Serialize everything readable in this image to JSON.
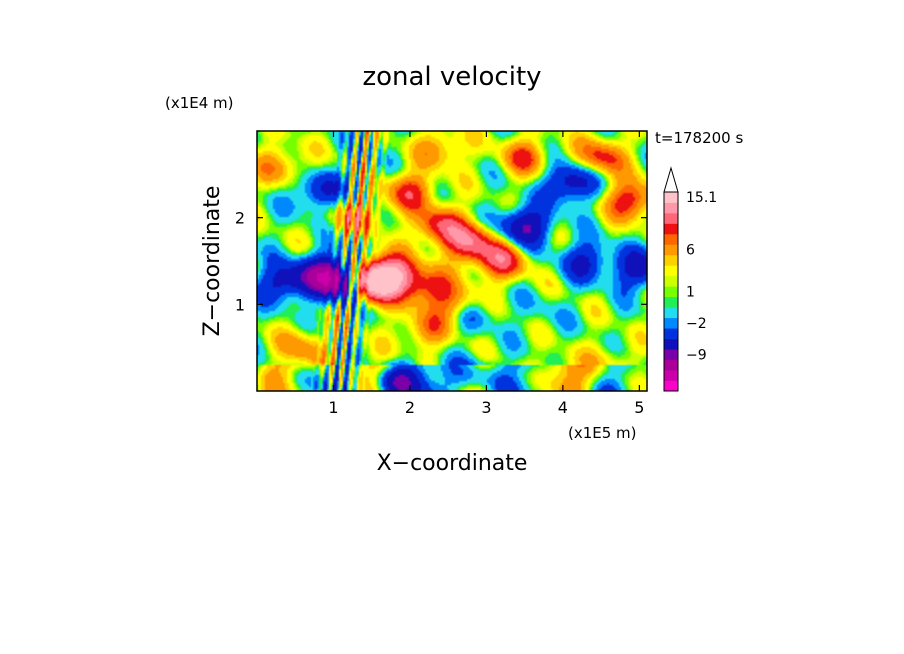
{
  "chart_data": {
    "type": "heatmap",
    "title": "zonal velocity",
    "xlabel": "X−coordinate",
    "ylabel": "Z−coordinate",
    "x_unit": "(x1E5 m)",
    "y_unit": "(x1E4 m)",
    "time_label": "t=178200 s",
    "xlim": [
      0,
      5.1
    ],
    "ylim": [
      0,
      3.0
    ],
    "x_ticks": [
      {
        "value": 1,
        "label": "1"
      },
      {
        "value": 2,
        "label": "2"
      },
      {
        "value": 3,
        "label": "3"
      },
      {
        "value": 4,
        "label": "4"
      },
      {
        "value": 5,
        "label": "5"
      }
    ],
    "y_ticks": [
      {
        "value": 1,
        "label": "1"
      },
      {
        "value": 2,
        "label": "2"
      }
    ],
    "colorbar": {
      "colors": [
        "#ff00cc",
        "#cc00aa",
        "#aa0099",
        "#7a00aa",
        "#1111bb",
        "#0033dd",
        "#0088ff",
        "#22ddee",
        "#22ee55",
        "#77ff00",
        "#ccff00",
        "#ffff00",
        "#ffd000",
        "#ff9900",
        "#ff6600",
        "#ee1111",
        "#ff6677",
        "#ff99aa",
        "#ffc2c8"
      ],
      "extend_color": "#ffffff",
      "tick_labels": [
        {
          "index": 3,
          "label": "−9"
        },
        {
          "index": 6,
          "label": "−2"
        },
        {
          "index": 9,
          "label": "1"
        },
        {
          "index": 13,
          "label": "6"
        },
        {
          "index": 18,
          "label": "15.1"
        }
      ]
    },
    "field_features": [
      {
        "x": 0.3,
        "z": 2.6,
        "amp": 4
      },
      {
        "x": 0.8,
        "z": 2.3,
        "amp": -5
      },
      {
        "x": 0.85,
        "z": 1.35,
        "amp": -8
      },
      {
        "x": 0.35,
        "z": 1.25,
        "amp": -6
      },
      {
        "x": 1.15,
        "z": 1.25,
        "amp": -10
      },
      {
        "x": 1.5,
        "z": 1.25,
        "amp": 14
      },
      {
        "x": 1.75,
        "z": 1.35,
        "amp": 10
      },
      {
        "x": 1.3,
        "z": 2.0,
        "amp": 5
      },
      {
        "x": 2.0,
        "z": 2.3,
        "amp": 6
      },
      {
        "x": 2.4,
        "z": 1.9,
        "amp": 7
      },
      {
        "x": 2.8,
        "z": 1.7,
        "amp": 8
      },
      {
        "x": 3.2,
        "z": 1.5,
        "amp": 7
      },
      {
        "x": 2.2,
        "z": 1.2,
        "amp": 6
      },
      {
        "x": 2.6,
        "z": 1.0,
        "amp": 5
      },
      {
        "x": 2.2,
        "z": 0.7,
        "amp": 4
      },
      {
        "x": 2.8,
        "z": 0.9,
        "amp": -3
      },
      {
        "x": 3.5,
        "z": 1.9,
        "amp": -8
      },
      {
        "x": 4.1,
        "z": 2.4,
        "amp": -7
      },
      {
        "x": 4.3,
        "z": 1.5,
        "amp": -5
      },
      {
        "x": 4.5,
        "z": 2.7,
        "amp": 6
      },
      {
        "x": 4.9,
        "z": 2.2,
        "amp": 7
      },
      {
        "x": 5.0,
        "z": 1.4,
        "amp": -6
      },
      {
        "x": 2.4,
        "z": 2.8,
        "amp": 4
      },
      {
        "x": 3.5,
        "z": 2.7,
        "amp": 5
      },
      {
        "x": 0.6,
        "z": 0.5,
        "amp": 4
      },
      {
        "x": 1.6,
        "z": 0.25,
        "amp": 2
      },
      {
        "x": 1.8,
        "z": 0.1,
        "amp": -8
      },
      {
        "x": 2.8,
        "z": 0.15,
        "amp": -4
      },
      {
        "x": 4.0,
        "z": 0.2,
        "amp": 2
      },
      {
        "x": 4.6,
        "z": 0.35,
        "amp": 2
      },
      {
        "x": 3.7,
        "z": 0.9,
        "amp": -1
      }
    ]
  }
}
